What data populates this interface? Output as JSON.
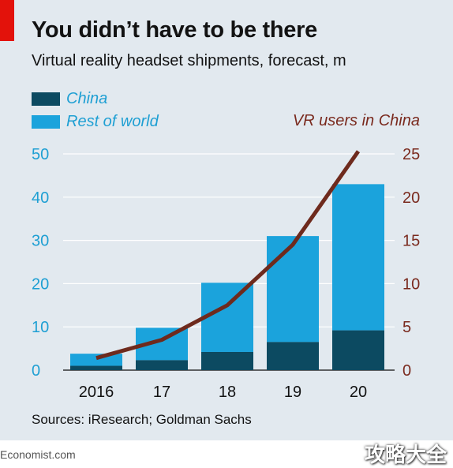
{
  "header": {
    "title": "You didn’t have to be there",
    "subtitle": "Virtual reality headset shipments, forecast, m"
  },
  "colors": {
    "china": "#0c4a61",
    "rest_of_world": "#1ba3dc",
    "vr_users_line": "#6e2a1d",
    "background": "#e2e9ef",
    "brand_red": "#e3120b"
  },
  "chart_data": {
    "type": "bar",
    "stacked": true,
    "categories": [
      "2016",
      "17",
      "18",
      "19",
      "20"
    ],
    "series": [
      {
        "name": "China",
        "values": [
          1.0,
          2.3,
          4.2,
          6.5,
          9.2
        ]
      },
      {
        "name": "Rest of world",
        "values": [
          2.8,
          7.5,
          16.0,
          24.5,
          33.8
        ]
      }
    ],
    "line_series": {
      "name": "VR users in China",
      "axis": "right",
      "values": [
        1.4,
        3.5,
        7.5,
        14.5,
        25.3
      ]
    },
    "yticks_left": [
      "0",
      "10",
      "20",
      "30",
      "40",
      "50"
    ],
    "yticks_right": [
      "0",
      "5",
      "10",
      "15",
      "20",
      "25"
    ],
    "ylim_left": [
      0,
      50
    ],
    "ylim_right": [
      0,
      25
    ],
    "grid": true,
    "legend_position": "top-left"
  },
  "source": "Sources: iResearch; Goldman Sachs",
  "footer": {
    "site": "Economist.com",
    "watermark": "攻略大全"
  }
}
